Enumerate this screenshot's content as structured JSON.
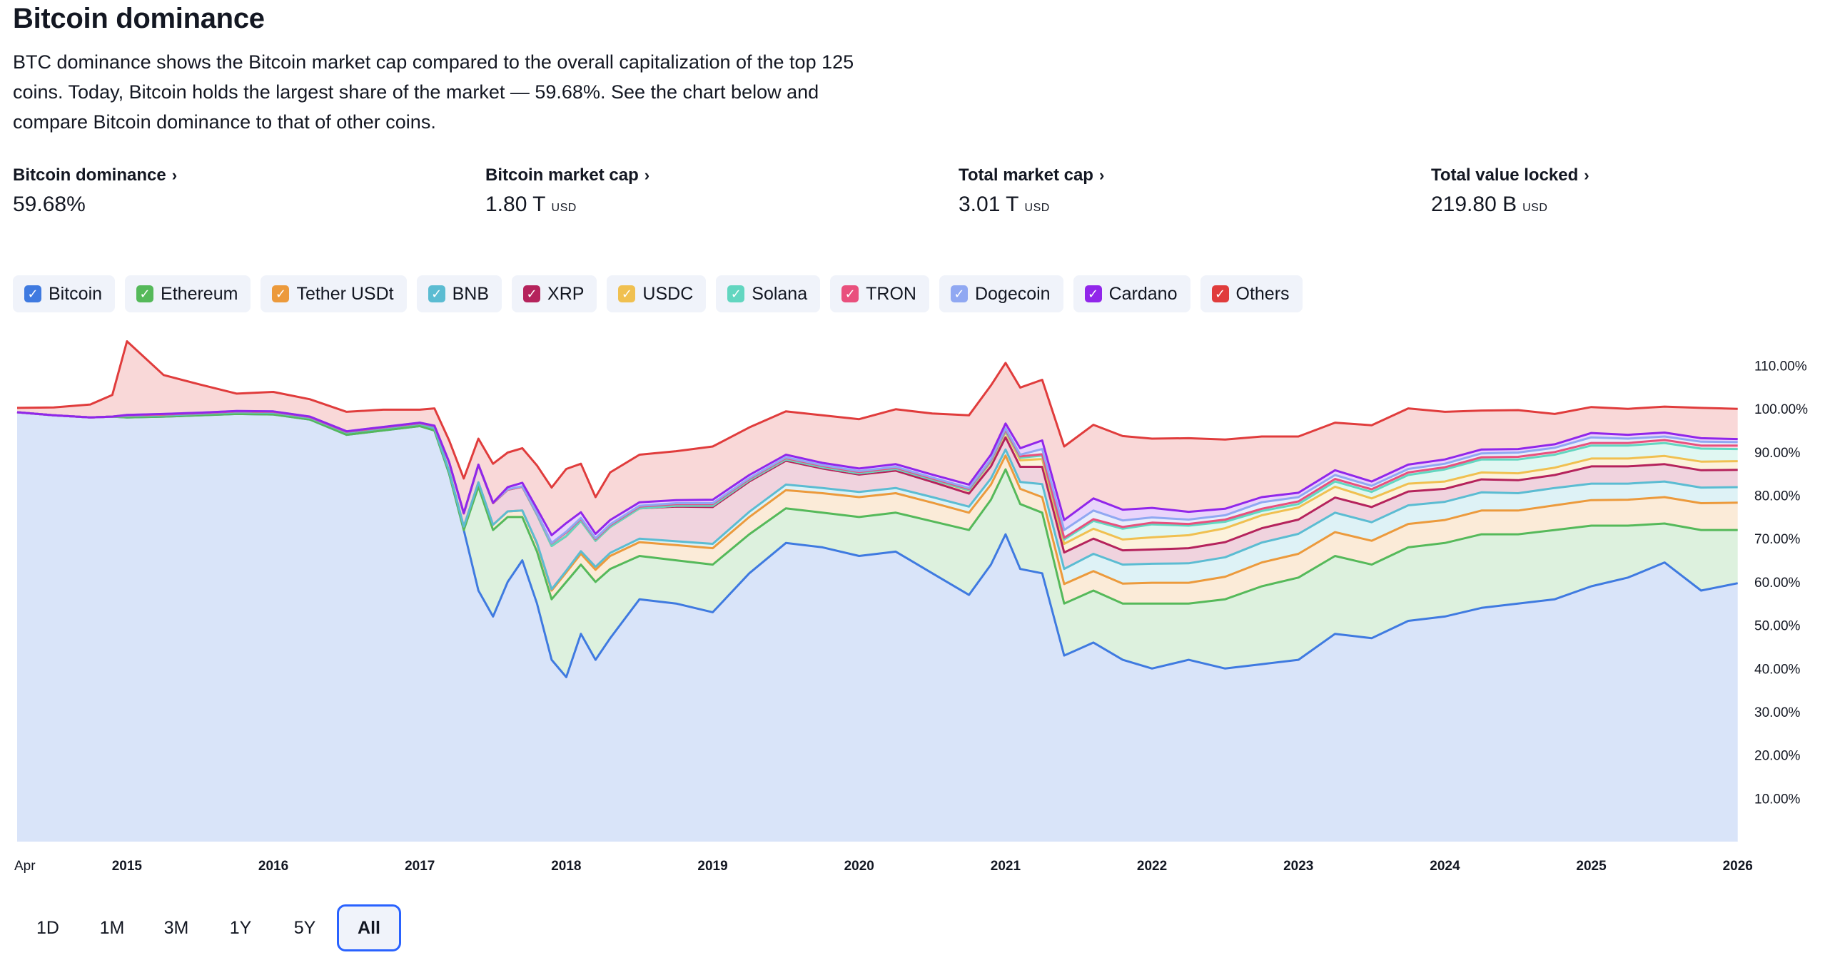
{
  "header": {
    "title": "Bitcoin dominance",
    "description": "BTC dominance shows the Bitcoin market cap compared to the overall capitalization of the top 125 coins. Today, Bitcoin holds the largest share of the market — 59.68%. See the chart below and compare Bitcoin dominance to that of other coins."
  },
  "stats": [
    {
      "label": "Bitcoin dominance",
      "value": "59.68%",
      "unit": ""
    },
    {
      "label": "Bitcoin market cap",
      "value": "1.80 T",
      "unit": "USD"
    },
    {
      "label": "Total market cap",
      "value": "3.01 T",
      "unit": "USD"
    },
    {
      "label": "Total value locked",
      "value": "219.80 B",
      "unit": "USD"
    }
  ],
  "legend": [
    {
      "name": "Bitcoin",
      "color": "#3f7ae0"
    },
    {
      "name": "Ethereum",
      "color": "#55b95a"
    },
    {
      "name": "Tether USDt",
      "color": "#ec9a3c"
    },
    {
      "name": "BNB",
      "color": "#5bbcd2"
    },
    {
      "name": "XRP",
      "color": "#b5235c"
    },
    {
      "name": "USDC",
      "color": "#f0c050"
    },
    {
      "name": "Solana",
      "color": "#62d6c0"
    },
    {
      "name": "TRON",
      "color": "#e9507d"
    },
    {
      "name": "Dogecoin",
      "color": "#90a8f2"
    },
    {
      "name": "Cardano",
      "color": "#9126ea"
    },
    {
      "name": "Others",
      "color": "#e03c3c"
    }
  ],
  "ranges": {
    "items": [
      "1D",
      "1M",
      "3M",
      "1Y",
      "5Y",
      "All"
    ],
    "active": "All"
  },
  "chart_data": {
    "type": "area",
    "stacked": true,
    "x_label_start": "Apr",
    "x_ticks": [
      "2015",
      "2016",
      "2017",
      "2018",
      "2019",
      "2020",
      "2021",
      "2022",
      "2023",
      "2024",
      "2025",
      "2026"
    ],
    "y_ticks": [
      "10.00%",
      "20.00%",
      "30.00%",
      "40.00%",
      "50.00%",
      "60.00%",
      "70.00%",
      "80.00%",
      "90.00%",
      "100.00%",
      "110.00%"
    ],
    "ylim": [
      0,
      117
    ],
    "x": [
      2014.25,
      2014.5,
      2014.75,
      2014.9,
      2015.0,
      2015.25,
      2015.5,
      2015.75,
      2016.0,
      2016.25,
      2016.5,
      2016.75,
      2017.0,
      2017.1,
      2017.2,
      2017.3,
      2017.4,
      2017.5,
      2017.6,
      2017.7,
      2017.8,
      2017.9,
      2018.0,
      2018.1,
      2018.2,
      2018.3,
      2018.5,
      2018.75,
      2019.0,
      2019.25,
      2019.5,
      2019.75,
      2020.0,
      2020.25,
      2020.5,
      2020.75,
      2020.9,
      2021.0,
      2021.1,
      2021.25,
      2021.4,
      2021.6,
      2021.8,
      2022.0,
      2022.25,
      2022.5,
      2022.75,
      2023.0,
      2023.25,
      2023.5,
      2023.75,
      2024.0,
      2024.25,
      2024.5,
      2024.75,
      2025.0,
      2025.25,
      2025.5,
      2025.75,
      2026.0
    ],
    "series": [
      {
        "name": "Bitcoin",
        "values": [
          99.2,
          98.5,
          98.0,
          98.2,
          98.0,
          98.2,
          98.5,
          98.8,
          98.7,
          97.5,
          94.0,
          95.0,
          96.0,
          95.0,
          85.0,
          72.0,
          58.0,
          52.0,
          60.0,
          65.0,
          55.0,
          42.0,
          38.0,
          48.0,
          42.0,
          47.0,
          56.0,
          55.0,
          53.0,
          62.0,
          69.0,
          68.0,
          66.0,
          67.0,
          62.0,
          57.0,
          64.0,
          71.0,
          63.0,
          62.0,
          43.0,
          46.0,
          42.0,
          40.0,
          42.0,
          40.0,
          41.0,
          42.0,
          48.0,
          47.0,
          51.0,
          52.0,
          54.0,
          55.0,
          56.0,
          59.0,
          61.0,
          64.5,
          58.0,
          59.7
        ]
      },
      {
        "name": "Ethereum",
        "values": [
          0.0,
          0.0,
          0.0,
          0.0,
          0.0,
          0.0,
          0.0,
          0.0,
          0.0,
          0.0,
          0.0,
          0.0,
          0.0,
          0.0,
          0.0,
          0.0,
          24.0,
          20.0,
          15.0,
          10.0,
          12.0,
          14.0,
          22.0,
          16.0,
          18.0,
          16.0,
          10.0,
          10.0,
          11.0,
          9.0,
          8.0,
          8.0,
          9.0,
          9.0,
          12.0,
          15.0,
          15.0,
          15.0,
          15.0,
          14.0,
          12.0,
          12.0,
          13.0,
          15.0,
          13.0,
          16.0,
          18.0,
          19.0,
          18.0,
          17.0,
          17.0,
          17.0,
          17.0,
          16.0,
          16.0,
          14.0,
          12.0,
          9.0,
          14.0,
          12.3
        ]
      },
      {
        "name": "Tether USDt",
        "values": [
          0.0,
          0.0,
          0.0,
          0.0,
          0.3,
          0.3,
          0.3,
          0.4,
          0.4,
          0.4,
          0.5,
          0.5,
          0.5,
          0.5,
          0.6,
          0.8,
          1.0,
          1.2,
          1.3,
          1.5,
          1.8,
          2.0,
          2.2,
          2.5,
          2.8,
          3.0,
          3.2,
          3.5,
          3.8,
          4.0,
          4.2,
          4.5,
          4.6,
          4.5,
          4.3,
          4.0,
          3.5,
          3.2,
          3.5,
          3.6,
          4.5,
          4.5,
          4.6,
          4.8,
          4.8,
          5.2,
          5.5,
          5.5,
          5.5,
          5.5,
          5.4,
          5.3,
          5.5,
          5.5,
          5.7,
          5.9,
          6.0,
          6.1,
          6.2,
          6.3
        ]
      },
      {
        "name": "BNB",
        "values": [
          0.0,
          0.0,
          0.0,
          0.0,
          0.0,
          0.0,
          0.0,
          0.0,
          0.0,
          0.0,
          0.0,
          0.0,
          0.0,
          0.0,
          0.0,
          0.0,
          0.0,
          0.0,
          0.0,
          0.0,
          0.2,
          0.3,
          0.4,
          0.6,
          0.7,
          0.7,
          0.8,
          0.9,
          1.0,
          1.2,
          1.3,
          1.2,
          1.2,
          1.2,
          1.3,
          1.4,
          1.4,
          1.4,
          1.6,
          3.0,
          3.5,
          4.0,
          4.4,
          4.4,
          4.5,
          4.5,
          4.6,
          4.6,
          4.5,
          4.3,
          4.3,
          4.2,
          4.2,
          4.0,
          4.0,
          3.8,
          3.7,
          3.6,
          3.6,
          3.6
        ]
      },
      {
        "name": "XRP",
        "values": [
          0.0,
          0.0,
          0.0,
          0.0,
          0.2,
          0.2,
          0.2,
          0.2,
          0.2,
          0.2,
          0.2,
          0.2,
          0.2,
          0.5,
          2.0,
          3.0,
          4.0,
          5.0,
          5.0,
          5.5,
          6.5,
          10.0,
          8.0,
          7.0,
          6.0,
          6.0,
          7.0,
          8.0,
          8.5,
          7.0,
          5.5,
          4.5,
          4.0,
          4.0,
          3.5,
          3.0,
          2.8,
          2.8,
          3.5,
          4.0,
          3.8,
          3.5,
          3.3,
          3.3,
          3.5,
          3.5,
          3.3,
          3.3,
          3.5,
          3.5,
          3.2,
          3.0,
          3.0,
          3.0,
          3.0,
          4.0,
          4.0,
          4.0,
          4.0,
          4.0
        ]
      },
      {
        "name": "USDC",
        "values": [
          0.0,
          0.0,
          0.0,
          0.0,
          0.0,
          0.0,
          0.0,
          0.0,
          0.0,
          0.0,
          0.0,
          0.0,
          0.0,
          0.0,
          0.0,
          0.0,
          0.0,
          0.0,
          0.0,
          0.0,
          0.0,
          0.0,
          0.0,
          0.0,
          0.0,
          0.0,
          0.0,
          0.2,
          0.3,
          0.3,
          0.3,
          0.3,
          0.3,
          0.4,
          0.5,
          0.7,
          1.0,
          1.2,
          1.5,
          1.8,
          2.0,
          2.3,
          2.5,
          2.8,
          3.0,
          3.2,
          3.0,
          2.8,
          2.5,
          2.0,
          1.8,
          1.7,
          1.6,
          1.6,
          1.7,
          1.8,
          1.8,
          1.9,
          2.0,
          2.0
        ]
      },
      {
        "name": "Solana",
        "values": [
          0.0,
          0.0,
          0.0,
          0.0,
          0.0,
          0.0,
          0.0,
          0.0,
          0.0,
          0.0,
          0.0,
          0.0,
          0.0,
          0.0,
          0.0,
          0.0,
          0.0,
          0.0,
          0.0,
          0.0,
          0.0,
          0.0,
          0.0,
          0.0,
          0.0,
          0.0,
          0.0,
          0.0,
          0.0,
          0.0,
          0.0,
          0.0,
          0.0,
          0.0,
          0.0,
          0.1,
          0.2,
          0.3,
          0.6,
          0.8,
          1.0,
          1.8,
          2.5,
          3.0,
          2.2,
          1.5,
          1.0,
          0.8,
          1.2,
          1.5,
          2.0,
          2.8,
          3.0,
          3.2,
          3.0,
          3.0,
          3.0,
          3.0,
          3.0,
          2.8
        ]
      },
      {
        "name": "TRON",
        "values": [
          0.0,
          0.0,
          0.0,
          0.0,
          0.0,
          0.0,
          0.0,
          0.0,
          0.0,
          0.0,
          0.0,
          0.0,
          0.0,
          0.0,
          0.0,
          0.0,
          0.0,
          0.0,
          0.0,
          0.0,
          0.3,
          0.6,
          0.8,
          0.5,
          0.4,
          0.4,
          0.4,
          0.4,
          0.4,
          0.3,
          0.3,
          0.3,
          0.3,
          0.3,
          0.3,
          0.3,
          0.3,
          0.3,
          0.3,
          0.3,
          0.4,
          0.4,
          0.4,
          0.4,
          0.4,
          0.5,
          0.5,
          0.6,
          0.6,
          0.6,
          0.6,
          0.5,
          0.5,
          0.6,
          0.6,
          0.6,
          0.6,
          0.7,
          0.7,
          0.8
        ]
      },
      {
        "name": "Dogecoin",
        "values": [
          0.0,
          0.0,
          0.0,
          0.0,
          0.1,
          0.1,
          0.1,
          0.1,
          0.1,
          0.1,
          0.1,
          0.1,
          0.1,
          0.1,
          0.1,
          0.1,
          0.1,
          0.1,
          0.1,
          0.1,
          0.1,
          0.1,
          0.2,
          0.2,
          0.2,
          0.2,
          0.2,
          0.2,
          0.2,
          0.2,
          0.2,
          0.2,
          0.2,
          0.2,
          0.2,
          0.2,
          0.2,
          0.3,
          0.4,
          1.2,
          1.8,
          2.0,
          1.5,
          1.2,
          1.0,
          1.0,
          1.5,
          1.0,
          0.9,
          0.8,
          0.8,
          0.8,
          0.9,
          1.0,
          1.0,
          1.3,
          1.0,
          0.8,
          0.9,
          0.8
        ]
      },
      {
        "name": "Cardano",
        "values": [
          0.0,
          0.0,
          0.0,
          0.0,
          0.0,
          0.0,
          0.0,
          0.0,
          0.0,
          0.0,
          0.0,
          0.0,
          0.0,
          0.0,
          0.0,
          0.0,
          0.0,
          0.0,
          0.5,
          0.8,
          1.0,
          1.8,
          2.0,
          1.3,
          1.0,
          1.0,
          0.8,
          0.7,
          0.8,
          0.7,
          0.6,
          0.5,
          0.6,
          0.6,
          0.7,
          0.8,
          1.0,
          1.1,
          1.5,
          2.0,
          2.3,
          2.8,
          2.5,
          2.2,
          1.8,
          1.5,
          1.2,
          1.0,
          1.1,
          1.0,
          1.0,
          1.0,
          0.9,
          0.8,
          0.8,
          1.0,
          0.9,
          0.9,
          0.8,
          0.7
        ]
      },
      {
        "name": "Others",
        "values": [
          1.0,
          1.8,
          3.0,
          5.0,
          17.0,
          9.0,
          6.5,
          4.0,
          4.5,
          4.0,
          4.5,
          4.0,
          3.0,
          4.0,
          5.0,
          8.0,
          6.0,
          9.0,
          8.0,
          8.0,
          10.0,
          11.0,
          12.5,
          11.2,
          8.5,
          11.0,
          11.0,
          11.3,
          12.3,
          11.0,
          10.0,
          11.0,
          11.4,
          12.7,
          14.1,
          16.0,
          16.0,
          14.0,
          14.0,
          14.0,
          17.0,
          17.0,
          17.0,
          16.0,
          17.0,
          16.0,
          14.0,
          13.0,
          11.0,
          13.0,
          13.0,
          11.0,
          9.0,
          9.0,
          7.0,
          6.0,
          6.0,
          6.0,
          7.0,
          7.0
        ]
      }
    ]
  }
}
